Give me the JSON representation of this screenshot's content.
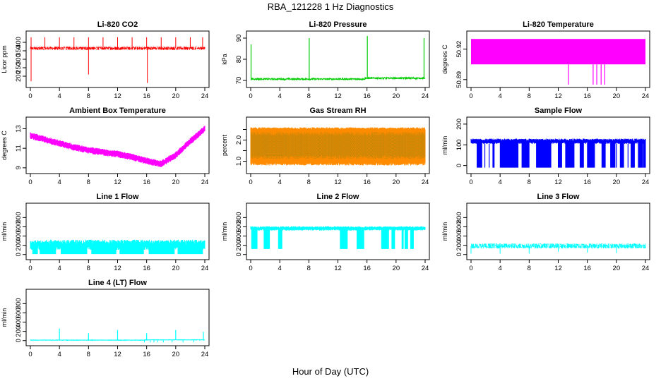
{
  "figure": {
    "title": "RBA_121228  1 Hz Diagnostics",
    "xlabel": "Hour of Day (UTC)"
  },
  "chart_data": [
    {
      "type": "line",
      "title": "Li-820 CO2",
      "ylabel": "Licor ppm",
      "color": "#ff0000",
      "xlim": [
        0,
        24
      ],
      "xticks": [
        0,
        4,
        8,
        12,
        16,
        20,
        24
      ],
      "ylim": [
        150,
        450
      ],
      "yticks": [
        200,
        250,
        300,
        350,
        400
      ],
      "pattern": "band_spikes",
      "band": [
        355,
        375
      ],
      "spike_up": 430,
      "spikes_up_at": [
        0.1,
        2,
        4,
        6,
        8,
        10,
        12,
        14,
        16,
        18,
        20,
        22,
        23.7
      ],
      "spikes_down": [
        [
          0.1,
          170
        ],
        [
          8.0,
          210
        ],
        [
          16.1,
          160
        ]
      ]
    },
    {
      "type": "line",
      "title": "Li-820 Pressure",
      "ylabel": "kPa",
      "color": "#00cc00",
      "xlim": [
        0,
        24
      ],
      "xticks": [
        0,
        4,
        8,
        12,
        16,
        20,
        24
      ],
      "ylim": [
        68,
        92
      ],
      "yticks": [
        70,
        80,
        90
      ],
      "pattern": "base_spikes",
      "base": [
        70.3,
        71.0
      ],
      "spikes": [
        [
          0.05,
          87
        ],
        [
          8.05,
          90
        ],
        [
          16.05,
          91
        ],
        [
          23.85,
          90
        ]
      ]
    },
    {
      "type": "line",
      "title": "Li-820 Temperature",
      "ylabel": "degrees C",
      "color": "#ff00ff",
      "xlim": [
        0,
        24
      ],
      "xticks": [
        0,
        4,
        8,
        12,
        16,
        20,
        24
      ],
      "ylim": [
        50.885,
        50.935
      ],
      "yticks": [
        50.89,
        50.92
      ],
      "ytick_labels": [
        "50.89",
        "50.92"
      ],
      "pattern": "solid_block",
      "block": [
        50.905,
        50.93
      ],
      "drops": [
        [
          13.4,
          50.885
        ],
        [
          16.8,
          50.885
        ],
        [
          17.3,
          50.885
        ],
        [
          17.9,
          50.885
        ],
        [
          18.4,
          50.885
        ]
      ]
    },
    {
      "type": "line",
      "title": "Ambient Box Temperature",
      "ylabel": "degrees C",
      "color": "#ff00ff",
      "xlim": [
        0,
        24
      ],
      "xticks": [
        0,
        4,
        8,
        12,
        16,
        20,
        24
      ],
      "ylim": [
        8.7,
        13.9
      ],
      "yticks": [
        9,
        11,
        13
      ],
      "pattern": "band_curve",
      "curve_x": [
        0,
        2,
        4,
        6,
        8,
        10,
        12,
        14,
        16,
        18,
        20,
        22,
        24
      ],
      "curve_y": [
        12.3,
        11.9,
        11.5,
        11.1,
        10.8,
        10.6,
        10.4,
        10.1,
        9.7,
        9.4,
        10.3,
        11.7,
        13.0
      ],
      "curve_spread": 0.7
    },
    {
      "type": "line",
      "title": "Gas Stream RH",
      "ylabel": "percent",
      "color": "#ff8c00",
      "color2": "#b8860b",
      "xlim": [
        0,
        24
      ],
      "xticks": [
        0,
        4,
        8,
        12,
        16,
        20,
        24
      ],
      "ylim": [
        0.55,
        2.95
      ],
      "yticks": [
        1.0,
        1.5,
        2.0,
        2.5
      ],
      "ytick_labels": [
        "1.0",
        "",
        "2.0",
        ""
      ],
      "pattern": "noise_band",
      "band": [
        0.95,
        2.6
      ],
      "band2": [
        1.1,
        2.4
      ]
    },
    {
      "type": "line",
      "title": "Sample Flow",
      "ylabel": "ml/min",
      "color": "#0000ff",
      "xlim": [
        0,
        24
      ],
      "xticks": [
        0,
        4,
        8,
        12,
        16,
        20,
        24
      ],
      "ylim": [
        -25,
        220
      ],
      "yticks": [
        0,
        100,
        200
      ],
      "pattern": "gaps",
      "band": [
        105,
        130
      ],
      "low": -10,
      "gaps": [
        [
          0.8,
          1.5
        ],
        [
          3.0,
          3.2
        ],
        [
          4.0,
          6.5
        ],
        [
          7.0,
          8.0
        ],
        [
          9.0,
          11.0
        ],
        [
          12.0,
          12.5
        ],
        [
          13.0,
          14.2
        ],
        [
          15.0,
          15.5
        ],
        [
          16.0,
          17.0
        ],
        [
          18.0,
          18.5
        ],
        [
          19.2,
          19.8
        ],
        [
          20.5,
          21.0
        ],
        [
          22.0,
          22.5
        ],
        [
          23.0,
          23.6
        ],
        [
          23.7,
          24
        ]
      ],
      "spikes": [
        [
          1.9,
          -10
        ],
        [
          2.5,
          -10
        ],
        [
          20.0,
          -10
        ],
        [
          21.6,
          -10
        ]
      ]
    },
    {
      "type": "line",
      "title": "Line 1 Flow",
      "ylabel": "ml/min",
      "color": "#00ffff",
      "xlim": [
        0,
        24
      ],
      "xticks": [
        0,
        4,
        8,
        12,
        16,
        20,
        24
      ],
      "ylim": [
        -50,
        1050
      ],
      "yticks": [
        0,
        200,
        400,
        600,
        800
      ],
      "pattern": "gaps",
      "band": [
        100,
        320
      ],
      "low": 10,
      "gaps": [
        [
          0.3,
          1.0
        ],
        [
          1.3,
          3.5
        ],
        [
          4.2,
          7.8
        ],
        [
          8.4,
          11.8
        ],
        [
          12.3,
          15.6
        ],
        [
          16.3,
          19.8
        ],
        [
          20.3,
          23.7
        ]
      ],
      "spikes": []
    },
    {
      "type": "line",
      "title": "Line 2 Flow",
      "ylabel": "ml/min",
      "color": "#00ffff",
      "xlim": [
        0,
        24
      ],
      "xticks": [
        0,
        4,
        8,
        12,
        16,
        20,
        24
      ],
      "ylim": [
        -50,
        1050
      ],
      "yticks": [
        0,
        200,
        400,
        600,
        800
      ],
      "pattern": "gaps",
      "band": [
        520,
        610
      ],
      "low": 120,
      "gaps": [
        [
          0.1,
          0.9
        ],
        [
          1.8,
          2.6
        ],
        [
          3.8,
          4.3
        ],
        [
          12.3,
          13.3
        ],
        [
          14.6,
          15.6
        ],
        [
          18.0,
          19.0
        ],
        [
          19.4,
          19.8
        ],
        [
          20.8,
          21.0
        ],
        [
          21.2,
          21.6
        ],
        [
          22.0,
          22.4
        ]
      ],
      "spikes": []
    },
    {
      "type": "line",
      "title": "Line 3 Flow",
      "ylabel": "ml/min",
      "color": "#00ffff",
      "xlim": [
        0,
        24
      ],
      "xticks": [
        0,
        4,
        8,
        12,
        16,
        20,
        24
      ],
      "ylim": [
        -50,
        1050
      ],
      "yticks": [
        0,
        200,
        400,
        600,
        800
      ],
      "pattern": "band_spikes",
      "band": [
        130,
        240
      ],
      "spike_up": 250,
      "spikes_up_at": [],
      "spikes_down": [
        [
          0.0,
          20
        ],
        [
          4.0,
          20
        ],
        [
          8.0,
          20
        ],
        [
          12.0,
          60
        ],
        [
          16.0,
          40
        ],
        [
          20.0,
          30
        ]
      ]
    },
    {
      "type": "line",
      "title": "Line 4 (LT) Flow",
      "ylabel": "ml/min",
      "color": "#00ffff",
      "xlim": [
        0,
        24
      ],
      "xticks": [
        0,
        4,
        8,
        12,
        16,
        20,
        24
      ],
      "ylim": [
        -50,
        1050
      ],
      "yticks": [
        0,
        200,
        400,
        600,
        800
      ],
      "pattern": "base_spikes",
      "base": [
        5,
        15
      ],
      "spikes": [
        [
          4.0,
          260
        ],
        [
          8.0,
          160
        ],
        [
          12.0,
          230
        ],
        [
          16.0,
          160
        ],
        [
          20.0,
          230
        ],
        [
          23.8,
          190
        ]
      ],
      "dips": [
        [
          15.7,
          -40
        ],
        [
          16.5,
          -40
        ],
        [
          17.0,
          -40
        ],
        [
          17.5,
          -40
        ],
        [
          18.3,
          -40
        ],
        [
          19.5,
          -40
        ],
        [
          21.0,
          -40
        ],
        [
          22.5,
          -40
        ]
      ]
    }
  ]
}
